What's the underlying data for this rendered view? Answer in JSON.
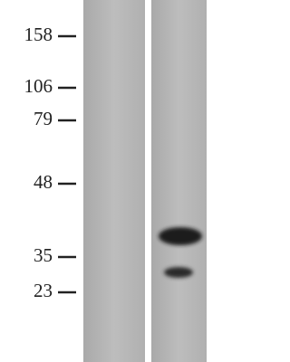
{
  "markers": [
    "158",
    "106",
    "79",
    "48",
    "35",
    "23"
  ]
}
